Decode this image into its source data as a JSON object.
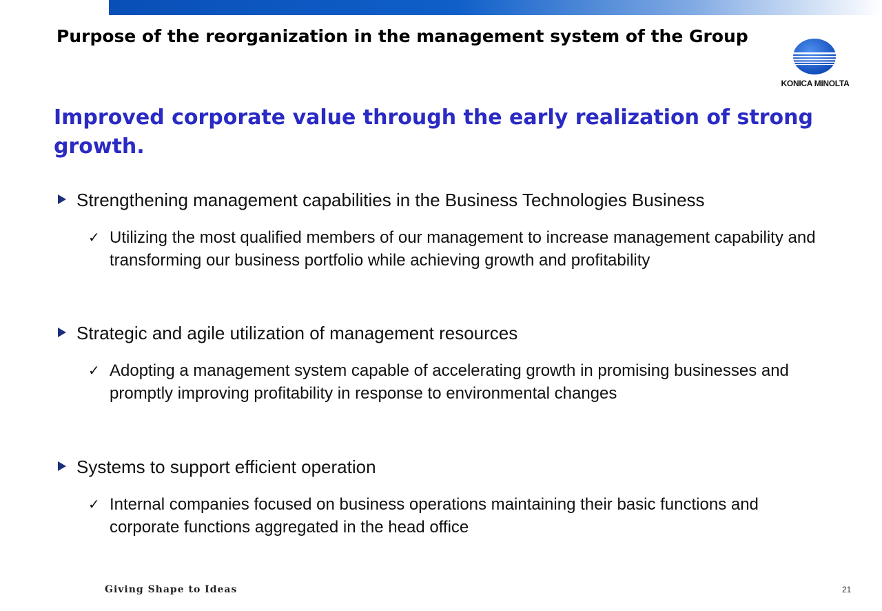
{
  "slide": {
    "title": "Purpose of the reorganization in the management system of the Group",
    "headline": "Improved corporate value through the early realization of strong growth.",
    "logo": {
      "text": "KONICA MINOLTA",
      "icon": "globe-icon",
      "color": "#1a5fd0"
    },
    "sections": [
      {
        "bullet_icon": "triangle-bullet-icon",
        "heading": "Strengthening management capabilities in the Business Technologies Business",
        "detail_icon": "check-icon",
        "detail": "Utilizing the most qualified members of our management to increase management capability and transforming our business portfolio while achieving growth and profitability"
      },
      {
        "bullet_icon": "triangle-bullet-icon",
        "heading": "Strategic and agile utilization of management resources",
        "detail_icon": "check-icon",
        "detail": "Adopting a management system capable of accelerating growth in promising businesses and promptly improving profitability in response to environmental changes"
      },
      {
        "bullet_icon": "triangle-bullet-icon",
        "heading": "Systems to support efficient operation",
        "detail_icon": "check-icon",
        "detail": "Internal companies focused on business operations maintaining their basic functions and corporate functions aggregated in the head office"
      }
    ],
    "footer": {
      "tagline": "Giving Shape to Ideas",
      "page_number": "21"
    },
    "colors": {
      "headline": "#2a2ac4",
      "top_bar": "#0a4fb8",
      "bullet": "#1c2f7a"
    }
  }
}
